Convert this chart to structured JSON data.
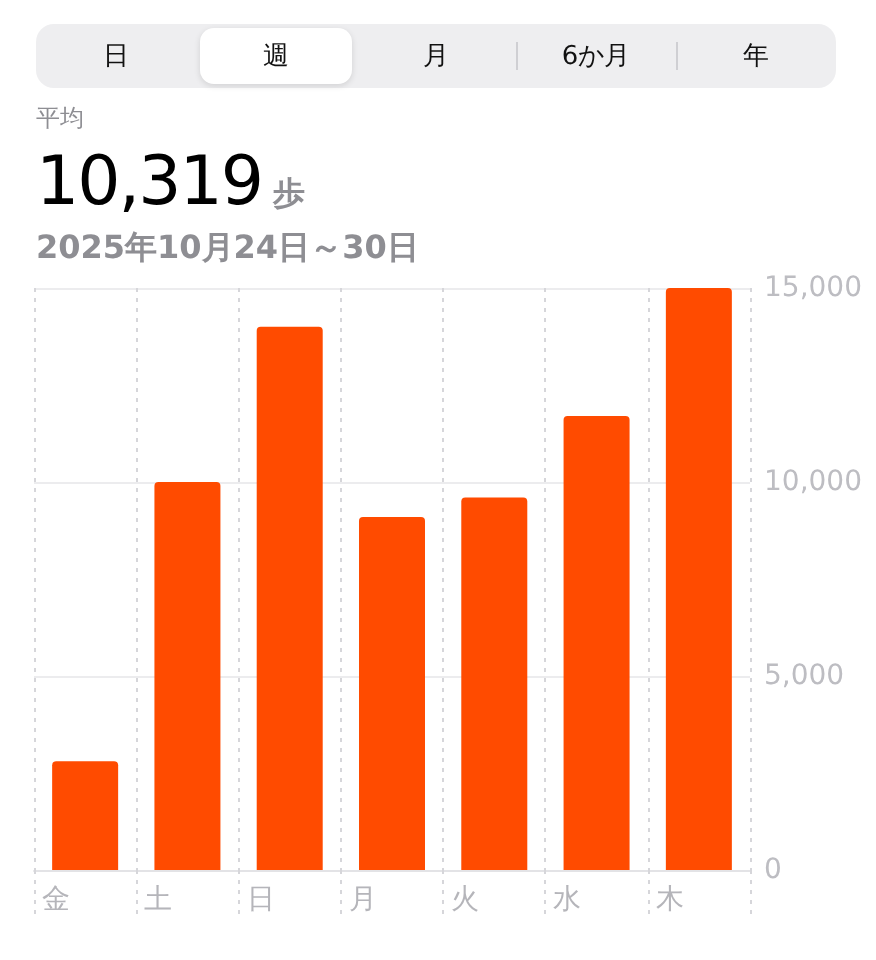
{
  "chart_data": {
    "type": "bar",
    "title": "10,319 歩",
    "subtitle": "2025年10月24日～30日",
    "annotations": [
      "日",
      "週",
      "月",
      "6か月",
      "年",
      "平均"
    ],
    "categories": [
      "金",
      "土",
      "日",
      "月",
      "火",
      "水",
      "木"
    ],
    "values": [
      2800,
      10000,
      14000,
      9100,
      9600,
      11700,
      15000
    ],
    "color": "#ff4b00",
    "ylim": [
      0,
      15000
    ],
    "yticks": [
      0,
      {
        "value": 5000,
        "label": "5,000"
      },
      {
        "value": 10000,
        "label": "10,000"
      },
      {
        "value": 15000,
        "label": "15,000"
      }
    ],
    "grid": true
  }
}
